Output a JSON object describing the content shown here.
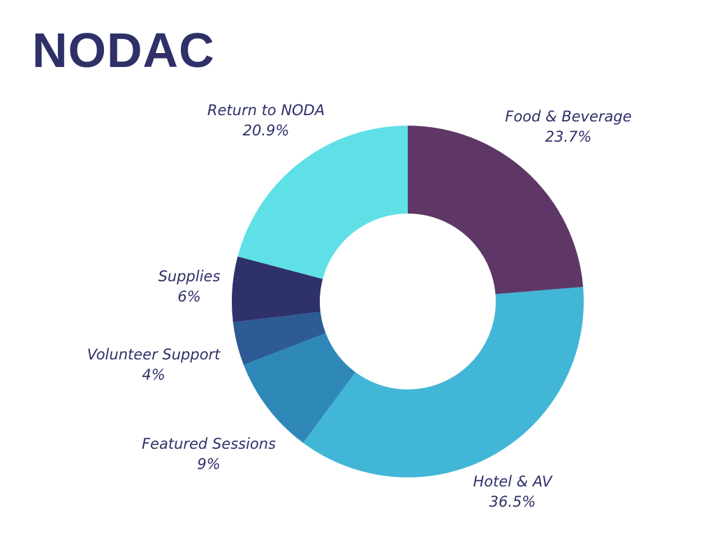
{
  "page": {
    "title": "NODAC"
  },
  "chart_data": {
    "type": "donut",
    "title": "NODAC",
    "start_angle_deg": 0,
    "direction": "clockwise",
    "slices": [
      {
        "label": "Food & Beverage",
        "value": 23.7,
        "value_label": "23.7%",
        "color": "#5e3766"
      },
      {
        "label": "Hotel & AV",
        "value": 36.5,
        "value_label": "36.5%",
        "color": "#42b6d6"
      },
      {
        "label": "Featured Sessions",
        "value": 9,
        "value_label": "9%",
        "color": "#2e89b8"
      },
      {
        "label": "Volunteer Support",
        "value": 4,
        "value_label": "4%",
        "color": "#2d5b93"
      },
      {
        "label": "Supplies",
        "value": 6,
        "value_label": "6%",
        "color": "#2e316a"
      },
      {
        "label": "Return to NODA",
        "value": 20.9,
        "value_label": "20.9%",
        "color": "#5ee0e6"
      }
    ]
  }
}
